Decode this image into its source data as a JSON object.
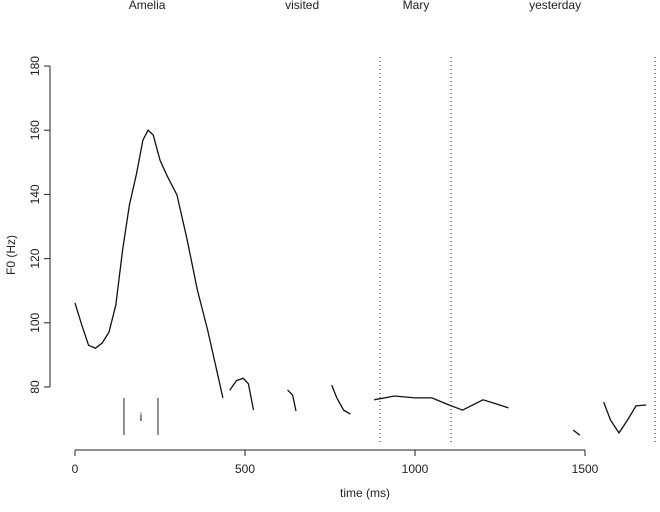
{
  "chart_data": {
    "type": "line",
    "xlabel": "time (ms)",
    "ylabel": "F0 (Hz)",
    "xlim": [
      0,
      1720
    ],
    "ylim": [
      60,
      182
    ],
    "xticks": [
      0,
      500,
      1000,
      1500
    ],
    "yticks": [
      80,
      100,
      120,
      140,
      160,
      180
    ],
    "color": "#111111",
    "words": [
      {
        "label": "Amelia",
        "x": 212
      },
      {
        "label": "visited",
        "x": 668
      },
      {
        "label": "Mary",
        "x": 1003
      },
      {
        "label": "yesterday",
        "x": 1412
      }
    ],
    "boundaries": [
      897,
      1106,
      1706
    ],
    "interval": {
      "label": "i",
      "x": [
        144,
        244
      ]
    },
    "x": [
      0,
      20,
      40,
      60,
      80,
      100,
      120,
      140,
      160,
      180,
      200,
      215,
      230,
      250,
      270,
      300,
      330,
      360,
      390,
      420,
      435,
      445,
      455,
      475,
      495,
      510,
      525,
      575,
      625,
      640,
      650,
      700,
      755,
      770,
      790,
      810,
      845,
      880,
      940,
      1000,
      1050,
      1100,
      1140,
      1200,
      1240,
      1275,
      1370,
      1465,
      1485,
      1520,
      1555,
      1575,
      1600,
      1625,
      1650,
      1680
    ],
    "values": [
      106.2,
      99.3,
      93,
      92.1,
      93.7,
      97.1,
      105.5,
      122.7,
      136.7,
      146,
      157,
      160,
      158.5,
      150.7,
      146,
      139.8,
      125.8,
      110.2,
      97.8,
      83.7,
      76.6,
      null,
      79,
      82,
      82.7,
      81,
      72.8,
      null,
      79.1,
      77.5,
      72.5,
      null,
      80.6,
      76.6,
      72.8,
      71.6,
      null,
      76,
      77.2,
      76.6,
      76.6,
      74.4,
      72.8,
      76,
      74.7,
      73.5,
      null,
      66.6,
      65,
      null,
      75.3,
      69.7,
      65.7,
      69.7,
      74.1,
      74.4
    ]
  }
}
